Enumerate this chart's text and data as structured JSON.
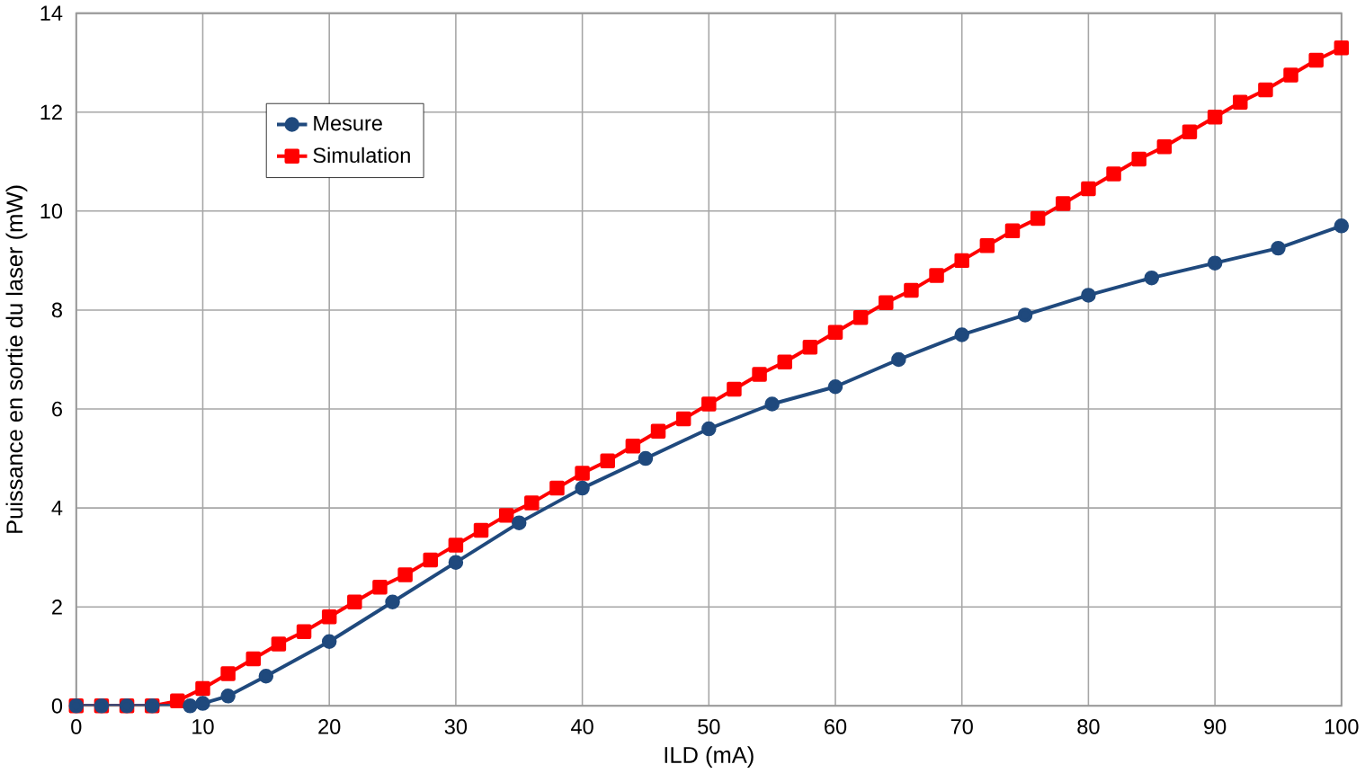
{
  "chart_data": {
    "type": "line",
    "xlabel": "ILD (mA)",
    "ylabel": "Puissance en sortie du laser (mW)",
    "xlim": [
      0,
      100
    ],
    "xticks": [
      0,
      10,
      20,
      30,
      40,
      50,
      60,
      70,
      80,
      90,
      100
    ],
    "ylim": [
      0,
      14
    ],
    "yticks": [
      0,
      2,
      4,
      6,
      8,
      10,
      12,
      14
    ],
    "grid": true,
    "legend": "top left",
    "series": [
      {
        "name": "Mesure",
        "color": "#1f497d",
        "marker": "circle",
        "x": [
          0,
          2,
          4,
          6,
          9,
          10,
          12,
          15,
          20,
          25,
          30,
          35,
          40,
          45,
          50,
          55,
          60,
          65,
          70,
          75,
          80,
          85,
          90,
          95,
          100
        ],
        "values": [
          0,
          0,
          0,
          0,
          0,
          0.05,
          0.2,
          0.6,
          1.3,
          2.1,
          2.9,
          3.7,
          4.4,
          5.0,
          5.6,
          6.1,
          6.45,
          7.0,
          7.5,
          7.9,
          8.3,
          8.65,
          8.95,
          9.25,
          9.7
        ]
      },
      {
        "name": "Simulation",
        "color": "#ff0000",
        "marker": "square",
        "x": [
          0,
          2,
          4,
          6,
          8,
          10,
          12,
          14,
          16,
          18,
          20,
          22,
          24,
          26,
          28,
          30,
          32,
          34,
          36,
          38,
          40,
          42,
          44,
          46,
          48,
          50,
          52,
          54,
          56,
          58,
          60,
          62,
          64,
          66,
          68,
          70,
          72,
          74,
          76,
          78,
          80,
          82,
          84,
          86,
          88,
          90,
          92,
          94,
          96,
          98,
          100
        ],
        "values": [
          0,
          0,
          0,
          0,
          0.1,
          0.35,
          0.65,
          0.95,
          1.25,
          1.5,
          1.8,
          2.1,
          2.4,
          2.65,
          2.95,
          3.25,
          3.55,
          3.85,
          4.1,
          4.4,
          4.7,
          4.95,
          5.25,
          5.55,
          5.8,
          6.1,
          6.4,
          6.7,
          6.95,
          7.25,
          7.55,
          7.85,
          8.15,
          8.4,
          8.7,
          9.0,
          9.3,
          9.6,
          9.85,
          10.15,
          10.45,
          10.75,
          11.05,
          11.3,
          11.6,
          11.9,
          12.2,
          12.45,
          12.75,
          13.05,
          13.3
        ]
      }
    ]
  }
}
